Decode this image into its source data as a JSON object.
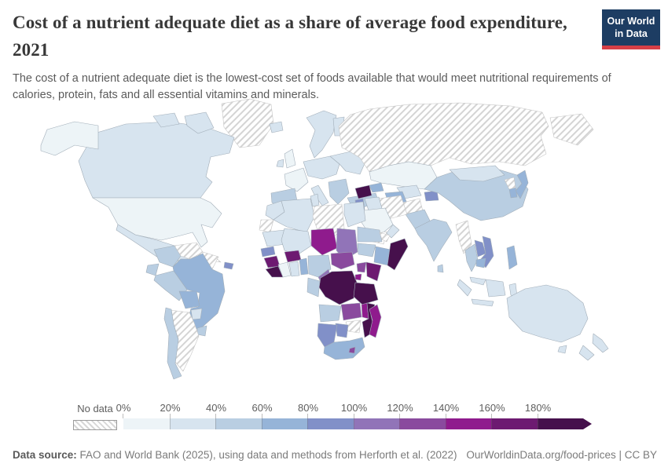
{
  "header": {
    "title": "Cost of a nutrient adequate diet as a share of average food expenditure, 2021",
    "subtitle": "The cost of a nutrient adequate diet is the lowest-cost set of foods available that would meet nutritional requirements of calories, protein, fats and all essential vitamins and minerals.",
    "logo": {
      "line1": "Our World",
      "line2": "in Data",
      "bg_color": "#1d3d63",
      "accent_color": "#d63f47"
    }
  },
  "footer": {
    "source_label": "Data source:",
    "source_text": " FAO and World Bank (2025), using data and methods from Herforth et al. (2022)",
    "right_text": "OurWorldinData.org/food-prices | CC BY"
  },
  "chart_data": {
    "type": "choropleth_map",
    "title": "Cost of a nutrient adequate diet as a share of average food expenditure, 2021",
    "unit": "%",
    "legend": {
      "no_data_label": "No data",
      "tick_labels": [
        "0%",
        "20%",
        "40%",
        "60%",
        "80%",
        "100%",
        "120%",
        "140%",
        "160%",
        "180%"
      ],
      "bins": [
        {
          "label": "0-20%",
          "color": "#edf4f7"
        },
        {
          "label": "20-40%",
          "color": "#d7e4ef"
        },
        {
          "label": "40-60%",
          "color": "#b9cee2"
        },
        {
          "label": "60-80%",
          "color": "#96b4d8"
        },
        {
          "label": "80-100%",
          "color": "#8190c8"
        },
        {
          "label": "100-120%",
          "color": "#9174b8"
        },
        {
          "label": "120-140%",
          "color": "#8a4a9e"
        },
        {
          "label": "140-160%",
          "color": "#8f1b8d"
        },
        {
          "label": "160-180%",
          "color": "#6d1a71"
        },
        {
          "label": "180%+",
          "color": "#46104c"
        }
      ],
      "hatch_line_color": "#d4d4d4"
    },
    "region_bins": {
      "greenland": "no_data",
      "russia": "no_data",
      "russia-east": "no_data",
      "cuba": "no_data",
      "venezuela": "no_data",
      "guianas": "no_data",
      "argentina": "no_data",
      "iran": "no_data",
      "afghanistan": "no_data",
      "yemen": "no_data",
      "myanmar": "no_data",
      "north-korea": "no_data",
      "papua-new-guinea": "no_data",
      "western-sahara": "no_data",
      "libya": "no_data",
      "eritrea": "no_data",
      "zimbabwe": "no_data",
      "united-states": 0,
      "saudi-arabia": 0,
      "kazakhstan": 0,
      "cote-divoire": 0,
      "france": 0,
      "uk": 0,
      "canada": 1,
      "mexico": 1,
      "iceland": 1,
      "ireland": 1,
      "scandinavia": 1,
      "finland": 1,
      "central-europe": 1,
      "italy": 1,
      "eastern-europe": 1,
      "paraguay": 1,
      "uzbekistan": 1,
      "kyrgyzstan": 1,
      "mongolia": 1,
      "iraq": 1,
      "oman": 1,
      "morocco": 1,
      "algeria": 1,
      "tunisia": 1,
      "egypt": 1,
      "mauritania": 1,
      "mali": 1,
      "ghana": 1,
      "malaysia": 1,
      "indonesia": 1,
      "australia": 1,
      "new-zealand": 1,
      "colombia": 2,
      "ecuador": 2,
      "peru": 2,
      "chile": 2,
      "uruguay": 2,
      "iberia": 2,
      "balkans": 2,
      "turkey": 2,
      "china": 2,
      "pakistan": 2,
      "india": 2,
      "sri-lanka": 2,
      "sudan": 2,
      "nigeria": 2,
      "congo-gabon": 2,
      "south-sudan": 2,
      "angola": 2,
      "thailand": 2,
      "brazil": 3,
      "bolivia": 3,
      "guatemala": 3,
      "nicaragua": 3,
      "panama-costa-rica": 3,
      "turkmenistan": 3,
      "caucasus": 3,
      "japan": 3,
      "south-korea": 3,
      "philippines": 3,
      "cambodia": 3,
      "ethiopia": 3,
      "togo-benin": 3,
      "south-africa": 3,
      "honduras": 4,
      "hispaniola": 4,
      "jordan": 4,
      "tajikistan": 4,
      "laos": 4,
      "vietnam": 4,
      "senegal": 4,
      "botswana": 4,
      "namibia": 4,
      "chad": 5,
      "cameroon": 5,
      "central-african-republic": 6,
      "uganda": 6,
      "zambia": 6,
      "lesotho": 6,
      "niger": 7,
      "malawi": 7,
      "rwanda-burundi": 7,
      "madagascar": 7,
      "guinea": 8,
      "burkina-faso": 8,
      "kenya": 8,
      "syria": 9,
      "sierra-leone-liberia": 9,
      "drc": 9,
      "tanzania": 9,
      "somalia": 9,
      "mozambique": 9
    }
  }
}
